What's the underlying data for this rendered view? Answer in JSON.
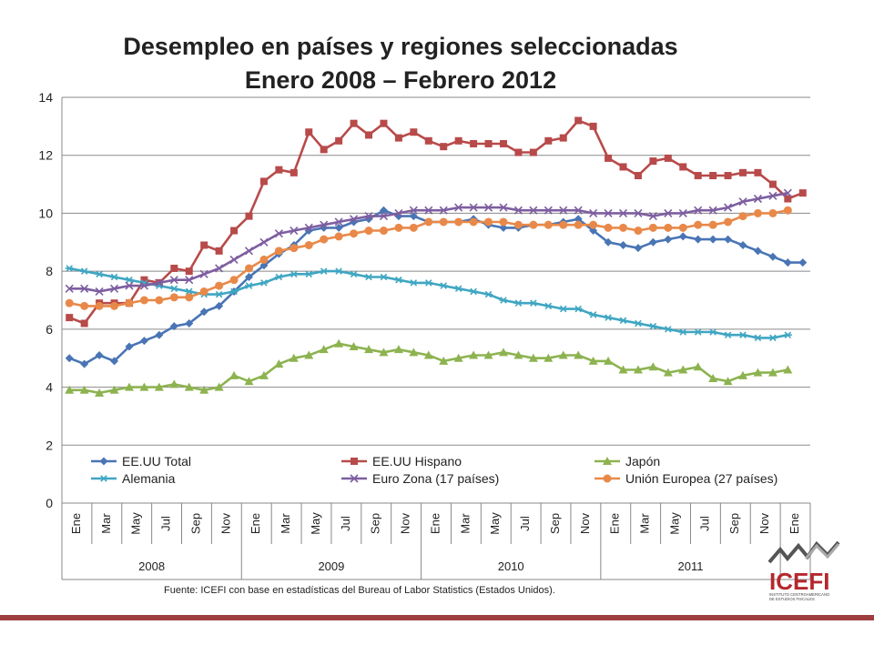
{
  "chart_data": {
    "type": "line",
    "title": "Desempleo en países y regiones seleccionadas",
    "subtitle": "Enero 2008 – Febrero 2012",
    "ylim": [
      0,
      14
    ],
    "yticks": [
      0,
      2,
      4,
      6,
      8,
      10,
      12,
      14
    ],
    "month_labels": [
      "Ene",
      "Mar",
      "May",
      "Jul",
      "Sep",
      "Nov",
      "Ene",
      "Mar",
      "May",
      "Jul",
      "Sep",
      "Nov",
      "Ene",
      "Mar",
      "May",
      "Jul",
      "Sep",
      "Nov",
      "Ene",
      "Mar",
      "May",
      "Jul",
      "Sep",
      "Nov",
      "Ene"
    ],
    "year_labels": [
      "2008",
      "2009",
      "2010",
      "2011"
    ],
    "grid": "horizontal",
    "legend_position": "bottom",
    "series": [
      {
        "name": "EE.UU Total",
        "color": "#4a75b5",
        "marker": "diamond",
        "values": [
          5.0,
          4.8,
          5.1,
          4.9,
          5.4,
          5.6,
          5.8,
          6.1,
          6.2,
          6.6,
          6.8,
          7.3,
          7.8,
          8.2,
          8.6,
          8.9,
          9.4,
          9.5,
          9.5,
          9.7,
          9.8,
          10.1,
          9.9,
          9.9,
          9.7,
          9.7,
          9.7,
          9.8,
          9.6,
          9.5,
          9.5,
          9.6,
          9.6,
          9.7,
          9.8,
          9.4,
          9.0,
          8.9,
          8.8,
          9.0,
          9.1,
          9.2,
          9.1,
          9.1,
          9.1,
          8.9,
          8.7,
          8.5,
          8.3,
          8.3
        ]
      },
      {
        "name": "EE.UU Hispano",
        "color": "#b84a4a",
        "marker": "square",
        "values": [
          6.4,
          6.2,
          6.9,
          6.9,
          6.9,
          7.7,
          7.6,
          8.1,
          8.0,
          8.9,
          8.7,
          9.4,
          9.9,
          11.1,
          11.5,
          11.4,
          12.8,
          12.2,
          12.5,
          13.1,
          12.7,
          13.1,
          12.6,
          12.8,
          12.5,
          12.3,
          12.5,
          12.4,
          12.4,
          12.4,
          12.1,
          12.1,
          12.5,
          12.6,
          13.2,
          13.0,
          11.9,
          11.6,
          11.3,
          11.8,
          11.9,
          11.6,
          11.3,
          11.3,
          11.3,
          11.4,
          11.4,
          11.0,
          10.5,
          10.7
        ]
      },
      {
        "name": "Japón",
        "color": "#8db350",
        "marker": "triangle",
        "values": [
          3.9,
          3.9,
          3.8,
          3.9,
          4.0,
          4.0,
          4.0,
          4.1,
          4.0,
          3.9,
          4.0,
          4.4,
          4.2,
          4.4,
          4.8,
          5.0,
          5.1,
          5.3,
          5.5,
          5.4,
          5.3,
          5.2,
          5.3,
          5.2,
          5.1,
          4.9,
          5.0,
          5.1,
          5.1,
          5.2,
          5.1,
          5.0,
          5.0,
          5.1,
          5.1,
          4.9,
          4.9,
          4.6,
          4.6,
          4.7,
          4.5,
          4.6,
          4.7,
          4.3,
          4.2,
          4.4,
          4.5,
          4.5,
          4.6,
          null
        ]
      },
      {
        "name": "Alemania",
        "color": "#3fa6c2",
        "marker": "star",
        "values": [
          8.1,
          8.0,
          7.9,
          7.8,
          7.7,
          7.6,
          7.5,
          7.4,
          7.3,
          7.2,
          7.2,
          7.3,
          7.5,
          7.6,
          7.8,
          7.9,
          7.9,
          8.0,
          8.0,
          7.9,
          7.8,
          7.8,
          7.7,
          7.6,
          7.6,
          7.5,
          7.4,
          7.3,
          7.2,
          7.0,
          6.9,
          6.9,
          6.8,
          6.7,
          6.7,
          6.5,
          6.4,
          6.3,
          6.2,
          6.1,
          6.0,
          5.9,
          5.9,
          5.9,
          5.8,
          5.8,
          5.7,
          5.7,
          5.8,
          null
        ]
      },
      {
        "name": "Euro Zona (17 países)",
        "color": "#7d5ea0",
        "marker": "x",
        "values": [
          7.4,
          7.4,
          7.3,
          7.4,
          7.5,
          7.5,
          7.6,
          7.7,
          7.7,
          7.9,
          8.1,
          8.4,
          8.7,
          9.0,
          9.3,
          9.4,
          9.5,
          9.6,
          9.7,
          9.8,
          9.9,
          9.9,
          10.0,
          10.1,
          10.1,
          10.1,
          10.2,
          10.2,
          10.2,
          10.2,
          10.1,
          10.1,
          10.1,
          10.1,
          10.1,
          10.0,
          10.0,
          10.0,
          10.0,
          9.9,
          10.0,
          10.0,
          10.1,
          10.1,
          10.2,
          10.4,
          10.5,
          10.6,
          10.7,
          null
        ]
      },
      {
        "name": "Unión Europea (27 países)",
        "color": "#e8894a",
        "marker": "circle",
        "values": [
          6.9,
          6.8,
          6.8,
          6.8,
          6.9,
          7.0,
          7.0,
          7.1,
          7.1,
          7.3,
          7.5,
          7.7,
          8.1,
          8.4,
          8.7,
          8.8,
          8.9,
          9.1,
          9.2,
          9.3,
          9.4,
          9.4,
          9.5,
          9.5,
          9.7,
          9.7,
          9.7,
          9.7,
          9.7,
          9.7,
          9.6,
          9.6,
          9.6,
          9.6,
          9.6,
          9.6,
          9.5,
          9.5,
          9.4,
          9.5,
          9.5,
          9.5,
          9.6,
          9.6,
          9.7,
          9.9,
          10.0,
          10.0,
          10.1,
          null
        ]
      }
    ]
  },
  "footer": {
    "source": "Fuente: ICEFI con base en estadísticas del Bureau of Labor Statistics (Estados Unidos).",
    "logo_text": "ICEFI",
    "logo_subtext_1": "INSTITUTO CENTROAMERICANO",
    "logo_subtext_2": "DE ESTUDIOS FISCALES"
  },
  "colors": {
    "accent_bar": "#9d3d3d",
    "logo_red": "#b5282e"
  }
}
